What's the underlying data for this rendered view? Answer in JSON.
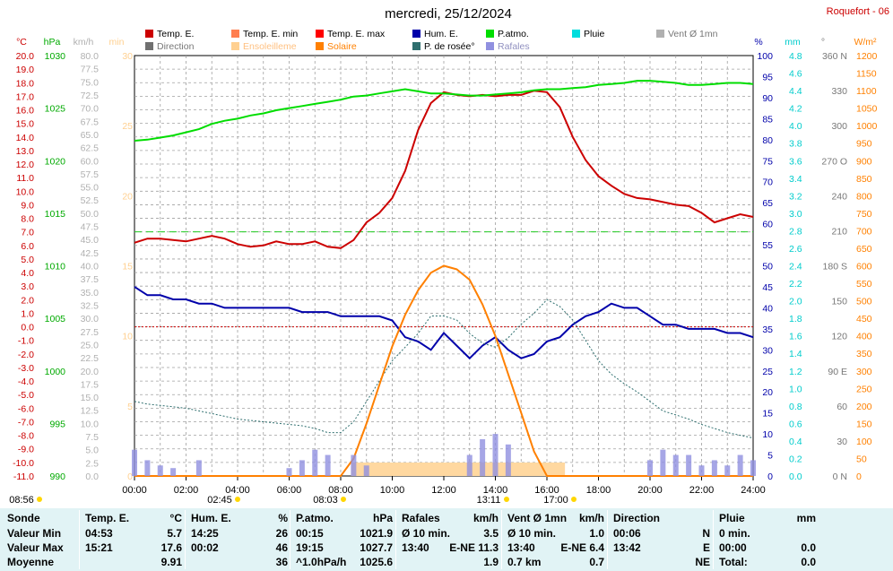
{
  "header": {
    "title": "mercredi, 25/12/2024",
    "station": "Roquefort - 06"
  },
  "legend": [
    {
      "label": "Temp. E.",
      "color": "#cc0000"
    },
    {
      "label": "Temp. E. min",
      "color": "#ff7f50"
    },
    {
      "label": "Temp. E. max",
      "color": "#ff0000"
    },
    {
      "label": "Hum. E.",
      "color": "#0000aa"
    },
    {
      "label": "P.atmo.",
      "color": "#00dd00"
    },
    {
      "label": "Pluie",
      "color": "#00dddd"
    },
    {
      "label": "Vent Ø 1mn",
      "color": "#b0b0b0"
    },
    {
      "label": "Direction",
      "color": "#707070"
    },
    {
      "label": "Ensoleilleme",
      "color": "#ffd090"
    },
    {
      "label": "Solaire",
      "color": "#ff8000"
    },
    {
      "label": "P. de rosée°",
      "color": "#2f6f6f"
    },
    {
      "label": "Rafales",
      "color": "#9090e0"
    }
  ],
  "axes": {
    "temp": {
      "unit": "°C",
      "ticks": [
        "20.0",
        "19.0",
        "18.0",
        "17.0",
        "16.0",
        "15.0",
        "14.0",
        "13.0",
        "12.0",
        "11.0",
        "10.0",
        "9.0",
        "8.0",
        "7.0",
        "6.0",
        "5.0",
        "4.0",
        "3.0",
        "2.0",
        "1.0",
        "0.0",
        "-1.0",
        "-2.0",
        "-3.0",
        "-4.0",
        "-5.0",
        "-6.0",
        "-7.0",
        "-8.0",
        "-9.0",
        "-10.0",
        "-11.0"
      ]
    },
    "pressure": {
      "unit": "hPa",
      "ticks": [
        "1030",
        "1025",
        "1020",
        "1015",
        "1010",
        "1005",
        "1000",
        "995",
        "990"
      ]
    },
    "wind": {
      "unit": "km/h",
      "ticks": [
        "80.0",
        "77.5",
        "75.0",
        "72.5",
        "70.0",
        "67.5",
        "65.0",
        "62.5",
        "60.0",
        "57.5",
        "55.0",
        "52.5",
        "50.0",
        "47.5",
        "45.0",
        "42.5",
        "40.0",
        "37.5",
        "35.0",
        "32.5",
        "30.0",
        "27.5",
        "25.0",
        "22.5",
        "20.0",
        "17.5",
        "15.0",
        "12.5",
        "10.0",
        "7.5",
        "5.0",
        "2.5",
        "0.0"
      ]
    },
    "sun": {
      "unit": "min",
      "ticks": [
        "30",
        "25",
        "20",
        "15",
        "10",
        "5",
        "0"
      ]
    },
    "humidity": {
      "unit": "%",
      "ticks": [
        "100",
        "95",
        "90",
        "85",
        "80",
        "75",
        "70",
        "65",
        "60",
        "55",
        "50",
        "45",
        "40",
        "35",
        "30",
        "25",
        "20",
        "15",
        "10",
        "5",
        "0"
      ]
    },
    "rain": {
      "unit": "mm",
      "ticks": [
        "4.8",
        "4.6",
        "4.4",
        "4.2",
        "4.0",
        "3.8",
        "3.6",
        "3.4",
        "3.2",
        "3.0",
        "2.8",
        "2.6",
        "2.4",
        "2.2",
        "2.0",
        "1.8",
        "1.6",
        "1.4",
        "1.2",
        "1.0",
        "0.8",
        "0.6",
        "0.4",
        "0.2",
        "0.0"
      ]
    },
    "direction": {
      "unit": "°",
      "ticks": [
        "360 N",
        "330",
        "300",
        "270 O",
        "240",
        "210",
        "180 S",
        "150",
        "120",
        "90 E",
        "60",
        "30",
        "0 N"
      ]
    },
    "solar": {
      "unit": "W/m²",
      "ticks": [
        "1200",
        "1150",
        "1100",
        "1050",
        "1000",
        "950",
        "900",
        "850",
        "800",
        "750",
        "700",
        "650",
        "600",
        "550",
        "500",
        "450",
        "400",
        "350",
        "300",
        "250",
        "200",
        "150",
        "100",
        "50",
        "0"
      ]
    },
    "time": {
      "ticks": [
        "00:00",
        "02:00",
        "04:00",
        "06:00",
        "08:00",
        "10:00",
        "12:00",
        "14:00",
        "16:00",
        "18:00",
        "20:00",
        "22:00",
        "24:00"
      ]
    }
  },
  "sun_events": [
    {
      "label": "08:56",
      "kind": "sun"
    },
    {
      "label": "02:45",
      "kind": "moon"
    },
    {
      "label": "08:03",
      "kind": "sunrise"
    },
    {
      "label": "13:11",
      "kind": "moon"
    },
    {
      "label": "17:00",
      "kind": "sunset"
    }
  ],
  "chart_data": {
    "type": "line",
    "x_hours": [
      0,
      0.5,
      1,
      1.5,
      2,
      2.5,
      3,
      3.5,
      4,
      4.5,
      5,
      5.5,
      6,
      6.5,
      7,
      7.5,
      8,
      8.5,
      9,
      9.5,
      10,
      10.5,
      11,
      11.5,
      12,
      12.5,
      13,
      13.5,
      14,
      14.5,
      15,
      15.5,
      16,
      16.5,
      17,
      17.5,
      18,
      18.5,
      19,
      19.5,
      20,
      20.5,
      21,
      21.5,
      22,
      22.5,
      23,
      23.5,
      24
    ],
    "series": [
      {
        "name": "Temp. E.",
        "axis": "temp",
        "color": "#cc0000",
        "values": [
          6.2,
          6.5,
          6.5,
          6.4,
          6.3,
          6.5,
          6.7,
          6.5,
          6.1,
          5.9,
          6.0,
          6.3,
          6.1,
          6.1,
          6.3,
          5.9,
          5.8,
          6.4,
          7.7,
          8.4,
          9.5,
          11.5,
          14.5,
          16.5,
          17.3,
          17.1,
          17.0,
          17.1,
          17.0,
          17.1,
          17.1,
          17.4,
          17.3,
          16.2,
          14.0,
          12.3,
          11.1,
          10.4,
          9.8,
          9.5,
          9.4,
          9.2,
          9.0,
          8.9,
          8.4,
          7.7,
          8.0,
          8.3,
          8.1
        ]
      },
      {
        "name": "Hum. E.",
        "axis": "humidity",
        "color": "#0000aa",
        "values": [
          45,
          43,
          43,
          42,
          42,
          41,
          41,
          40,
          40,
          40,
          40,
          40,
          40,
          39,
          39,
          39,
          38,
          38,
          38,
          38,
          37,
          33,
          32,
          30,
          34,
          31,
          28,
          31,
          33,
          30,
          28,
          29,
          32,
          33,
          36,
          38,
          39,
          41,
          40,
          40,
          38,
          36,
          36,
          35,
          35,
          35,
          34,
          34,
          33
        ]
      },
      {
        "name": "P.atmo.",
        "axis": "pressure",
        "color": "#00dd00",
        "values": [
          1021.9,
          1022.0,
          1022.2,
          1022.4,
          1022.7,
          1023.0,
          1023.5,
          1023.8,
          1024.0,
          1024.3,
          1024.5,
          1024.8,
          1025.0,
          1025.2,
          1025.4,
          1025.6,
          1025.8,
          1026.1,
          1026.2,
          1026.4,
          1026.6,
          1026.8,
          1026.6,
          1026.4,
          1026.4,
          1026.3,
          1026.2,
          1026.2,
          1026.3,
          1026.4,
          1026.5,
          1026.7,
          1026.8,
          1026.8,
          1026.9,
          1027.0,
          1027.2,
          1027.3,
          1027.4,
          1027.6,
          1027.6,
          1027.5,
          1027.4,
          1027.2,
          1027.2,
          1027.3,
          1027.4,
          1027.4,
          1027.3
        ]
      },
      {
        "name": "P. de rosée°",
        "axis": "temp",
        "color": "#2f6f6f",
        "values": [
          -5.5,
          -5.7,
          -5.8,
          -5.9,
          -6.0,
          -6.2,
          -6.4,
          -6.6,
          -6.8,
          -6.9,
          -7.0,
          -7.1,
          -7.2,
          -7.3,
          -7.5,
          -7.8,
          -7.8,
          -7.0,
          -5.5,
          -4.0,
          -2.5,
          -1.5,
          -0.5,
          0.8,
          0.8,
          0.5,
          -0.5,
          -1.2,
          -1.5,
          -0.8,
          0.2,
          1.0,
          2.0,
          1.5,
          0.5,
          -1.0,
          -2.5,
          -3.5,
          -4.2,
          -4.8,
          -5.5,
          -6.2,
          -6.5,
          -6.8,
          -7.2,
          -7.5,
          -7.8,
          -8.0,
          -8.2
        ]
      },
      {
        "name": "Solaire",
        "axis": "solar",
        "color": "#ff8000",
        "values": [
          0,
          0,
          0,
          0,
          0,
          0,
          0,
          0,
          0,
          0,
          0,
          0,
          0,
          0,
          0,
          0,
          0,
          50,
          150,
          260,
          370,
          460,
          530,
          580,
          600,
          590,
          560,
          490,
          400,
          290,
          180,
          70,
          0,
          0,
          0,
          0,
          0,
          0,
          0,
          0,
          0,
          0,
          0,
          0,
          0,
          0,
          0,
          0,
          0
        ]
      },
      {
        "name": "Rafales",
        "axis": "wind",
        "color": "#9090e0",
        "values": [
          5,
          3,
          2,
          1.5,
          0,
          3,
          0,
          0,
          0,
          0,
          0,
          0,
          1.5,
          3,
          5,
          4,
          0,
          4,
          2,
          0,
          0,
          0,
          0,
          0,
          0,
          0,
          4,
          7,
          8,
          6,
          0,
          0,
          0,
          0,
          0,
          0,
          0,
          0,
          0,
          0,
          3,
          5,
          4,
          4,
          2,
          3,
          2,
          4,
          3
        ]
      }
    ],
    "ensoleillement_blocks": [
      [
        8.4,
        16.7
      ]
    ],
    "hline_temp_max": 7.0,
    "hline_temp_zero": 0.0
  },
  "stats": {
    "columns": [
      {
        "title": "Sonde",
        "rows": [
          "Valeur Min",
          "Valeur Max",
          "Moyenne"
        ]
      },
      {
        "title": "Temp. E.",
        "unit": "°C",
        "rows": [
          [
            "04:53",
            "5.7"
          ],
          [
            "15:21",
            "17.6"
          ],
          [
            "",
            "9.91"
          ]
        ]
      },
      {
        "title": "Hum. E.",
        "unit": "%",
        "rows": [
          [
            "14:25",
            "26"
          ],
          [
            "00:02",
            "46"
          ],
          [
            "",
            "36"
          ]
        ]
      },
      {
        "title": "P.atmo.",
        "unit": "hPa",
        "rows": [
          [
            "00:15",
            "1021.9"
          ],
          [
            "19:15",
            "1027.7"
          ],
          [
            "^1.0hPa/h",
            "1025.6"
          ]
        ]
      },
      {
        "title": "Rafales",
        "unit": "km/h",
        "rows": [
          [
            "Ø 10 min.",
            "3.5"
          ],
          [
            "13:40",
            "E-NE 11.3"
          ],
          [
            "",
            "1.9"
          ]
        ]
      },
      {
        "title": "Vent Ø 1mn",
        "unit": "km/h",
        "rows": [
          [
            "Ø 10 min.",
            "1.0"
          ],
          [
            "13:40",
            "E-NE 6.4"
          ],
          [
            "0.7 km",
            "0.7"
          ]
        ]
      },
      {
        "title": "Direction",
        "unit": "",
        "rows": [
          [
            "00:06",
            "N"
          ],
          [
            "13:42",
            "E"
          ],
          [
            "",
            "NE"
          ]
        ]
      },
      {
        "title": "Pluie",
        "unit": "mm",
        "rows": [
          [
            "0 min.",
            ""
          ],
          [
            "00:00",
            "0.0"
          ],
          [
            "Total:",
            "0.0"
          ]
        ]
      }
    ]
  }
}
